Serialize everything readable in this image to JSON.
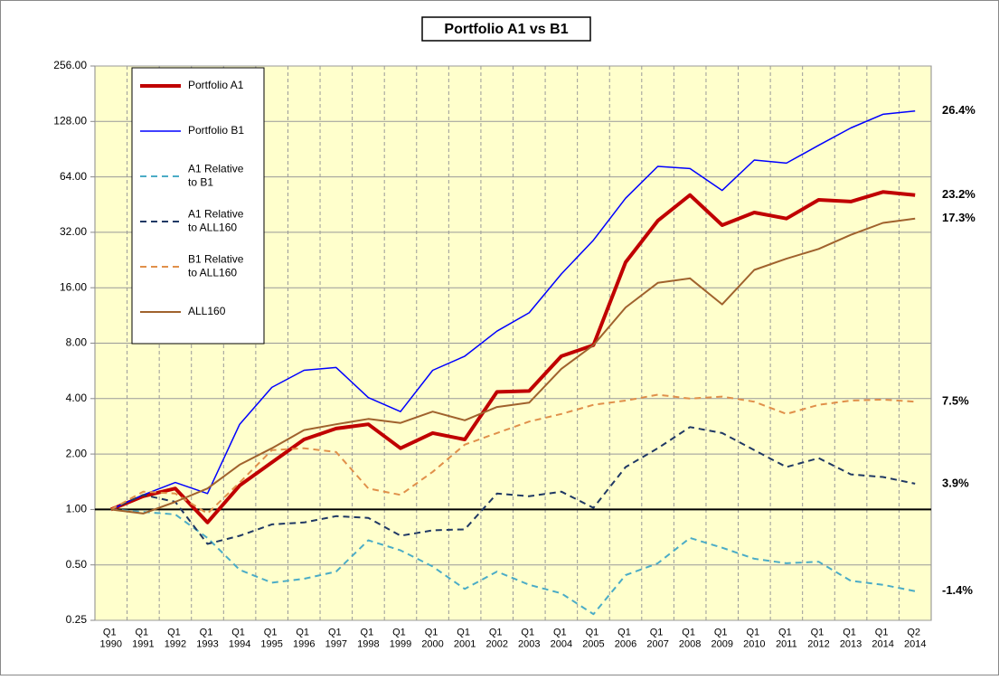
{
  "chart_data": {
    "type": "line",
    "title": "Portfolio A1  vs B1",
    "categories": [
      "Q1 1990",
      "Q1 1991",
      "Q1 1992",
      "Q1 1993",
      "Q1 1994",
      "Q1 1995",
      "Q1 1996",
      "Q1 1997",
      "Q1 1998",
      "Q1 1999",
      "Q1 2000",
      "Q1 2001",
      "Q1 2002",
      "Q1 2003",
      "Q1 2004",
      "Q1 2005",
      "Q1 2006",
      "Q1 2007",
      "Q1 2008",
      "Q1 2009",
      "Q1 2010",
      "Q1 2011",
      "Q1 2012",
      "Q1 2013",
      "Q1 2014",
      "Q2 2014"
    ],
    "log_scale": true,
    "log_base": 2,
    "grid": true,
    "legend": "upper left",
    "baseline": 1,
    "ylim": [
      0.25,
      256
    ],
    "yticks": [
      0.25,
      {
        "value": 0.5,
        "label": "0.50"
      },
      {
        "value": 1,
        "label": "1.00"
      },
      {
        "value": 2,
        "label": "2.00"
      },
      {
        "value": 4,
        "label": "4.00"
      },
      {
        "value": 8,
        "label": "8.00"
      },
      {
        "value": 16,
        "label": "16.00"
      },
      {
        "value": 32,
        "label": "32.00"
      },
      {
        "value": 64,
        "label": "64.00"
      },
      {
        "value": 128,
        "label": "128.00"
      },
      {
        "value": 256,
        "label": "256.00"
      }
    ],
    "series": [
      {
        "name": "Portfolio A1",
        "color": "#c00000",
        "width": 4,
        "dashed": false,
        "end_label": "23.2%",
        "label_color": "#c00000",
        "values": [
          1.0,
          1.18,
          1.3,
          0.85,
          1.35,
          1.8,
          2.4,
          2.75,
          2.9,
          2.15,
          2.6,
          2.4,
          4.35,
          4.4,
          6.8,
          7.8,
          22,
          37,
          51,
          35,
          41,
          38,
          48,
          47,
          53,
          51
        ]
      },
      {
        "name": "Portfolio B1",
        "color": "#0000ff",
        "width": 1.5,
        "dashed": false,
        "end_label": "26.4%",
        "label_color": "#0000cc",
        "values": [
          1.0,
          1.2,
          1.4,
          1.22,
          2.9,
          4.6,
          5.7,
          5.9,
          4.05,
          3.4,
          5.7,
          6.8,
          9.3,
          11.7,
          19,
          29,
          49,
          73,
          71,
          54,
          79,
          76,
          95,
          118,
          140,
          146
        ]
      },
      {
        "name": "A1 Relative to B1",
        "color": "#4bacc6",
        "width": 2,
        "dashed": true,
        "end_label": "-1.4%",
        "label_color": "#4bacc6",
        "values": [
          1.0,
          0.97,
          0.94,
          0.7,
          0.47,
          0.4,
          0.42,
          0.46,
          0.68,
          0.6,
          0.49,
          0.37,
          0.46,
          0.39,
          0.35,
          0.27,
          0.44,
          0.51,
          0.7,
          0.62,
          0.54,
          0.51,
          0.52,
          0.41,
          0.39,
          0.36
        ]
      },
      {
        "name": "A1 Relative to ALL160",
        "color": "#1f3864",
        "width": 2,
        "dashed": true,
        "end_label": "3.9%",
        "label_color": "#1f3864",
        "values": [
          1.0,
          1.2,
          1.1,
          0.65,
          0.72,
          0.83,
          0.85,
          0.92,
          0.9,
          0.72,
          0.77,
          0.78,
          1.22,
          1.18,
          1.25,
          1.02,
          1.7,
          2.15,
          2.8,
          2.6,
          2.1,
          1.7,
          1.9,
          1.55,
          1.5,
          1.38
        ]
      },
      {
        "name": "B1 Relative to ALL160",
        "color": "#e0904a",
        "width": 2,
        "dashed": true,
        "end_label": "7.5%",
        "label_color": "#339933",
        "values": [
          1.0,
          1.25,
          1.22,
          0.95,
          1.4,
          2.1,
          2.15,
          2.05,
          1.3,
          1.2,
          1.6,
          2.25,
          2.6,
          3.0,
          3.3,
          3.7,
          3.9,
          4.2,
          4.0,
          4.1,
          3.85,
          3.3,
          3.7,
          3.9,
          3.95,
          3.85
        ]
      },
      {
        "name": "ALL160",
        "color": "#a0622d",
        "width": 2,
        "dashed": false,
        "end_label": "17.3%",
        "label_color": "#a0522d",
        "values": [
          1.0,
          0.95,
          1.1,
          1.3,
          1.75,
          2.15,
          2.7,
          2.9,
          3.1,
          2.95,
          3.4,
          3.05,
          3.6,
          3.8,
          5.8,
          7.8,
          12.5,
          17,
          18,
          13,
          20,
          23,
          26,
          31,
          36,
          38
        ]
      }
    ]
  }
}
